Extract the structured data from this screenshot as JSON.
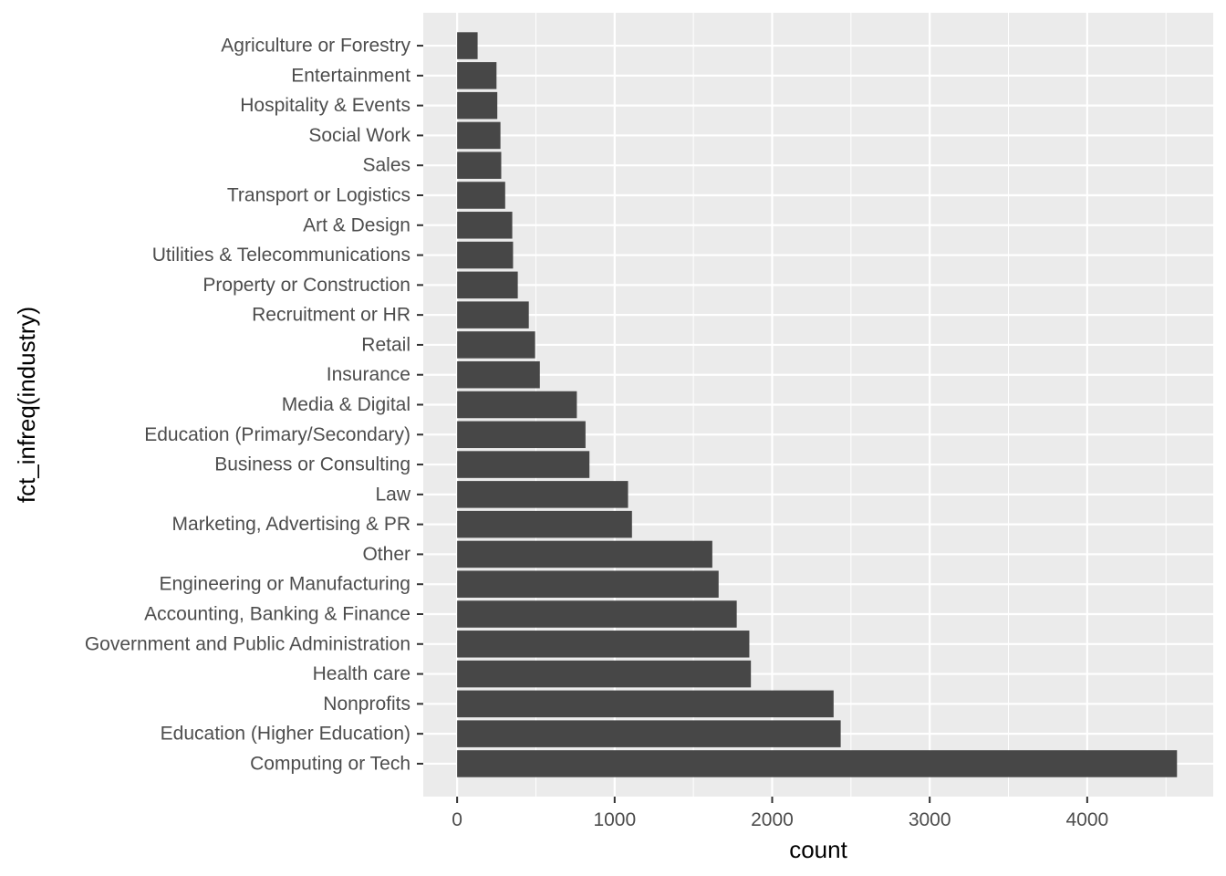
{
  "chart_data": {
    "type": "bar",
    "orientation": "horizontal",
    "xlabel": "count",
    "ylabel": "fct_infreq(industry)",
    "xlim": [
      -215,
      4800
    ],
    "xticks": [
      0,
      1000,
      2000,
      3000,
      4000
    ],
    "xtick_labels": [
      "0",
      "1000",
      "2000",
      "3000",
      "4000"
    ],
    "grid": true,
    "categories": [
      "Computing or Tech",
      "Education (Higher Education)",
      "Nonprofits",
      "Health care",
      "Government and Public Administration",
      "Accounting, Banking & Finance",
      "Engineering or Manufacturing",
      "Other",
      "Marketing, Advertising & PR",
      "Law",
      "Business or Consulting",
      "Education (Primary/Secondary)",
      "Media & Digital",
      "Insurance",
      "Retail",
      "Recruitment or HR",
      "Property or Construction",
      "Utilities & Telecommunications",
      "Art & Design",
      "Transport or Logistics",
      "Sales",
      "Social Work",
      "Hospitality & Events",
      "Entertainment",
      "Agriculture or Forestry"
    ],
    "values": [
      4570,
      2435,
      2390,
      1865,
      1855,
      1775,
      1660,
      1620,
      1110,
      1085,
      840,
      815,
      760,
      525,
      495,
      455,
      385,
      355,
      350,
      305,
      280,
      275,
      255,
      250,
      130
    ]
  },
  "colors": {
    "panel_background": "#ebebeb",
    "grid_major": "#ffffff",
    "bar_fill": "#474747",
    "tick_text": "#4d4d4d"
  }
}
